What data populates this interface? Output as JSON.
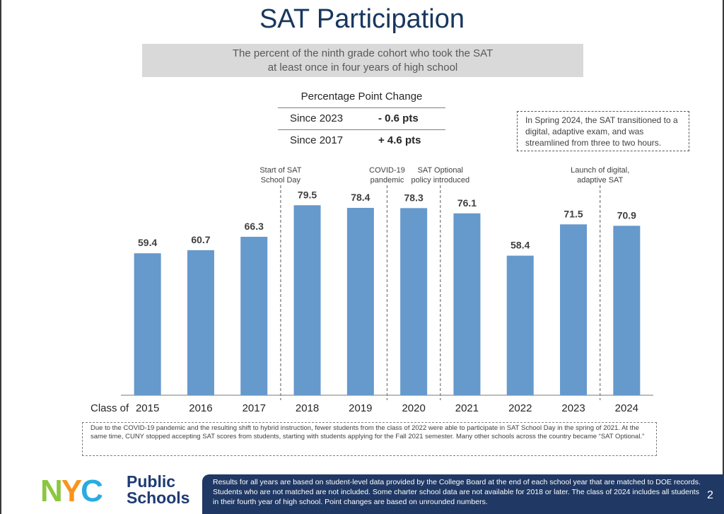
{
  "title": "SAT Participation",
  "subtitle_line1": "The percent of the ninth grade cohort who took the SAT",
  "subtitle_line2": "at least once in four years of high school",
  "ppc": {
    "heading": "Percentage Point Change",
    "rows": [
      {
        "label": "Since 2023",
        "value": "- 0.6 pts"
      },
      {
        "label": "Since 2017",
        "value": "+ 4.6 pts"
      }
    ]
  },
  "callout": "In Spring 2024, the SAT transitioned to a digital, adaptive exam, and was streamlined from three to two hours.",
  "chart_data": {
    "type": "bar",
    "x_prefix": "Class of",
    "categories": [
      "2015",
      "2016",
      "2017",
      "2018",
      "2019",
      "2020",
      "2021",
      "2022",
      "2023",
      "2024"
    ],
    "values": [
      59.4,
      60.7,
      66.3,
      79.5,
      78.4,
      78.3,
      76.1,
      58.4,
      71.5,
      70.9
    ],
    "labels": [
      "59.4",
      "60.7",
      "66.3",
      "79.5",
      "78.4",
      "78.3",
      "76.1",
      "58.4",
      "71.5",
      "70.9"
    ],
    "ylim": [
      0,
      85
    ],
    "bar_color": "#6699cc",
    "events": [
      {
        "after": "2017",
        "lines": [
          "Start of SAT",
          "School Day"
        ]
      },
      {
        "after": "2019",
        "lines": [
          "COVID-19",
          "pandemic"
        ]
      },
      {
        "after": "2020",
        "lines": [
          "SAT Optional",
          "policy introduced"
        ]
      },
      {
        "after": "2023",
        "lines": [
          "Launch of digital,",
          "adaptive SAT"
        ]
      }
    ]
  },
  "note": "Due to the COVID-19 pandemic and the resulting shift to hybrid instruction, fewer students from the class of 2022 were able to participate in SAT School Day in the spring of 2021. At the same time, CUNY stopped accepting SAT scores from students, starting with students applying for the Fall 2021 semester. Many other schools across the country became “SAT Optional.”",
  "logo": {
    "letters": [
      "N",
      "Y",
      "C"
    ],
    "line1": "Public",
    "line2": "Schools",
    "colors": [
      "#8cc63f",
      "#f7941d",
      "#29abe2"
    ]
  },
  "footer": "Results for all years are based on student-level data provided by the College Board at the end of each school year that are matched to DOE records. Students who are not matched are not included. Some charter school data are not available for 2018 or later. The class of 2024 includes all students in their fourth year of high school. Point changes are based on unrounded numbers.",
  "page_number": "2"
}
